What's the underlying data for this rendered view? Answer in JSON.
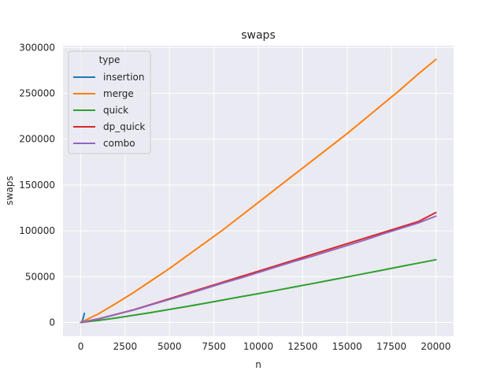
{
  "chart_data": {
    "type": "line",
    "title": "swaps",
    "xlabel": "n",
    "ylabel": "swaps",
    "xlim": [
      -1000,
      21000
    ],
    "ylim": [
      -15000,
      302000
    ],
    "xticks": [
      0,
      2500,
      5000,
      7500,
      10000,
      12500,
      15000,
      17500,
      20000
    ],
    "yticks": [
      0,
      50000,
      100000,
      150000,
      200000,
      250000,
      300000
    ],
    "grid": true,
    "legend": {
      "title": "type",
      "placement": "top-left"
    },
    "series": [
      {
        "name": "insertion",
        "color": "#1f77b4",
        "x": [
          0,
          50,
          100,
          150,
          200
        ],
        "y": [
          0,
          600,
          2500,
          5600,
          10000
        ]
      },
      {
        "name": "merge",
        "color": "#ff7f0e",
        "x": [
          0,
          1000,
          2000,
          3000,
          4000,
          5000,
          6000,
          7000,
          8000,
          9000,
          10000,
          11000,
          12000,
          13000,
          14000,
          15000,
          16000,
          17000,
          18000,
          19000,
          20000
        ],
        "y": [
          0,
          9500,
          21000,
          33000,
          46000,
          59000,
          73000,
          87000,
          101000,
          116000,
          131000,
          146000,
          161000,
          176000,
          191000,
          206000,
          222000,
          238000,
          254000,
          271000,
          287000
        ]
      },
      {
        "name": "quick",
        "color": "#2ca02c",
        "x": [
          0,
          1000,
          2000,
          3000,
          4000,
          5000,
          6000,
          7000,
          8000,
          9000,
          10000,
          11000,
          12000,
          13000,
          14000,
          15000,
          16000,
          17000,
          18000,
          19000,
          20000
        ],
        "y": [
          0,
          2300,
          5000,
          8000,
          11000,
          14300,
          17600,
          21000,
          24500,
          28000,
          31500,
          35000,
          38700,
          42300,
          46000,
          49700,
          53500,
          57200,
          61000,
          64700,
          68500
        ]
      },
      {
        "name": "dp_quick",
        "color": "#d62728",
        "x": [
          0,
          1000,
          2000,
          3000,
          4000,
          5000,
          6000,
          7000,
          8000,
          9000,
          10000,
          11000,
          12000,
          13000,
          14000,
          15000,
          16000,
          17000,
          18000,
          19000,
          20000
        ],
        "y": [
          0,
          4000,
          9000,
          14000,
          20000,
          26000,
          32000,
          38000,
          44000,
          50000,
          56000,
          62000,
          68000,
          74000,
          80000,
          86000,
          92000,
          98000,
          104000,
          110000,
          120000
        ]
      },
      {
        "name": "combo",
        "color": "#9467bd",
        "x": [
          0,
          1000,
          2000,
          3000,
          4000,
          5000,
          6000,
          7000,
          8000,
          9000,
          10000,
          11000,
          12000,
          13000,
          14000,
          15000,
          16000,
          17000,
          18000,
          19000,
          20000
        ],
        "y": [
          0,
          4000,
          8800,
          13800,
          19500,
          25200,
          31000,
          37000,
          43000,
          48500,
          54500,
          60500,
          66500,
          72000,
          78000,
          84000,
          90000,
          96500,
          102500,
          108500,
          116000
        ]
      }
    ]
  }
}
